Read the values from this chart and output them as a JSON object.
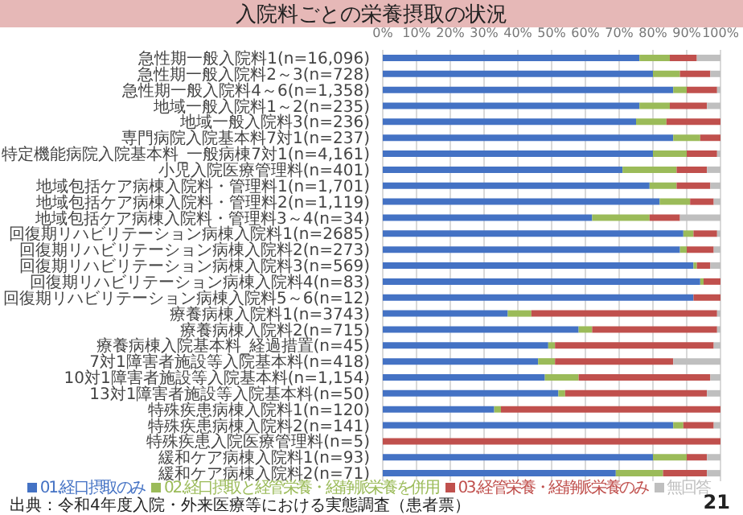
{
  "chart_data": {
    "type": "bar",
    "orientation": "horizontal",
    "stacked": true,
    "title": "入院料ごとの栄養摂取の状況",
    "categories": [
      "急性期一般入院料1(n=16,096)",
      "急性期一般入院料2～3(n=728)",
      "急性期一般入院料4～6(n=1,358)",
      "地域一般入院料1～2(n=235)",
      "地域一般入院料3(n=236)",
      "専門病院入院基本料7対1(n=237)",
      "特定機能病院入院基本料_一般病棟7対1(n=4,161)",
      "小児入院医療管理料(n=401)",
      "地域包括ケア病棟入院料・管理料1(n=1,701)",
      "地域包括ケア病棟入院料・管理料2(n=1,119)",
      "地域包括ケア病棟入院料・管理料3～4(n=34)",
      "回復期リハビリテーション病棟入院料1(n=2685)",
      "回復期リハビリテーション病棟入院料2(n=273)",
      "回復期リハビリテーション病棟入院料3(n=569)",
      "回復期リハビリテーション病棟入院料4(n=83)",
      "回復期リハビリテーション病棟入院料5～6(n=12)",
      "療養病棟入院料1(n=3743)",
      "療養病棟入院料2(n=715)",
      "療養病棟入院基本料_経過措置(n=45)",
      "7対1障害者施設等入院基本料(n=418)",
      "10対1障害者施設等入院基本料(n=1,154)",
      "13対1障害者施設等入院基本料(n=50)",
      "特殊疾患病棟入院料1(n=120)",
      "特殊疾患病棟入院料2(n=141)",
      "特殊疾患入院医療管理料(n=5)",
      "緩和ケア病棟入院料1(n=93)",
      "緩和ケア病棟入院料2(n=71)"
    ],
    "series": [
      {
        "name": "01.経口摂取のみ",
        "color": "#4472c4",
        "values": [
          76,
          80,
          86,
          76,
          75,
          86,
          80,
          71,
          79,
          82,
          62,
          89,
          88,
          92,
          94,
          92,
          37,
          58,
          49,
          46,
          48,
          52,
          33,
          86,
          0,
          80,
          69
        ]
      },
      {
        "name": "02.経口摂取と経管栄養・経静脈栄養を併用",
        "color": "#9bbb59",
        "values": [
          9,
          8,
          4,
          9,
          9,
          8,
          10,
          16,
          8,
          9,
          17,
          3,
          2,
          1,
          1,
          0,
          7,
          4,
          2,
          5,
          10,
          2,
          2,
          3,
          0,
          10,
          14
        ]
      },
      {
        "name": "03.経管栄養・経静脈栄養のみ",
        "color": "#c0504d",
        "values": [
          8,
          9,
          9,
          11,
          16,
          6,
          9,
          9,
          10,
          7,
          9,
          7,
          8,
          4,
          5,
          8,
          55,
          37,
          47,
          35,
          39,
          42,
          65,
          9,
          100,
          6,
          13
        ]
      },
      {
        "name": "無回答",
        "color": "#bfbfbf",
        "values": [
          7,
          3,
          1,
          4,
          0,
          0,
          1,
          4,
          3,
          2,
          12,
          1,
          2,
          3,
          0,
          0,
          1,
          1,
          2,
          14,
          3,
          4,
          0,
          2,
          0,
          4,
          4
        ]
      }
    ],
    "xlim": [
      0,
      100
    ],
    "xticks": [
      {
        "value": 0,
        "label": "0%"
      },
      {
        "value": 10,
        "label": "10%"
      },
      {
        "value": 20,
        "label": "20%"
      },
      {
        "value": 30,
        "label": "30%"
      },
      {
        "value": 40,
        "label": "40%"
      },
      {
        "value": 50,
        "label": "50%"
      },
      {
        "value": 60,
        "label": "60%"
      },
      {
        "value": 70,
        "label": "70%"
      },
      {
        "value": 80,
        "label": "80%"
      },
      {
        "value": 90,
        "label": "90%"
      },
      {
        "value": 100,
        "label": "100%"
      }
    ],
    "grid": "x",
    "legend": "bottom",
    "annotations": [
      "出典：令和4年度入院・外来医療等における実態調査（患者票）",
      "21"
    ]
  }
}
